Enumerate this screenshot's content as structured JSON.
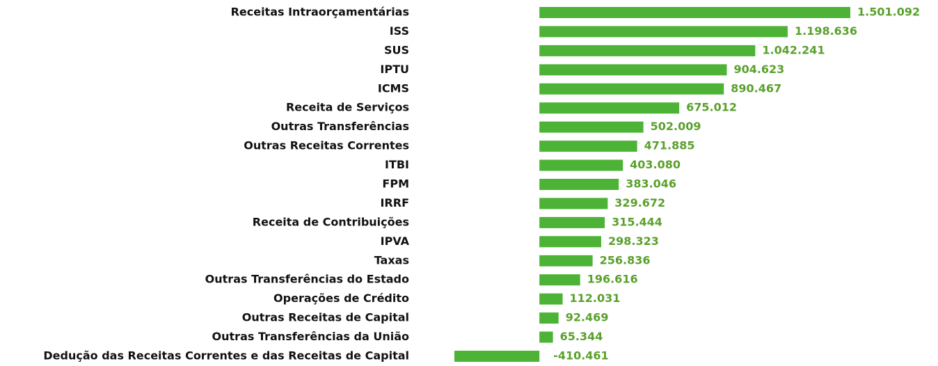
{
  "chart_data": {
    "type": "bar",
    "orientation": "horizontal",
    "color": "#4db336",
    "label_color": "#5aa02c",
    "categories": [
      "Receitas Intraorçamentárias",
      "ISS",
      "SUS",
      "IPTU",
      "ICMS",
      "Receita de Serviços",
      "Outras Transferências",
      "Outras Receitas Correntes",
      "ITBI",
      "FPM",
      "IRRF",
      "Receita de Contribuições",
      "IPVA",
      "Taxas",
      "Outras Transferências do Estado",
      "Operações de Crédito",
      "Outras Receitas de Capital",
      "Outras Transferências da União",
      "Dedução das Receitas Correntes e das Receitas de Capital"
    ],
    "values": [
      1501092,
      1198636,
      1042241,
      904623,
      890467,
      675012,
      502009,
      471885,
      403080,
      383046,
      329672,
      315444,
      298323,
      256836,
      196616,
      112031,
      92469,
      65344,
      -410461
    ],
    "value_labels": [
      "1.501.092",
      "1.198.636",
      "1.042.241",
      "904.623",
      "890.467",
      "675.012",
      "502.009",
      "471.885",
      "403.080",
      "383.046",
      "329.672",
      "315.444",
      "298.323",
      "256.836",
      "196.616",
      "112.031",
      "92.469",
      "65.344",
      "-410.461"
    ]
  }
}
